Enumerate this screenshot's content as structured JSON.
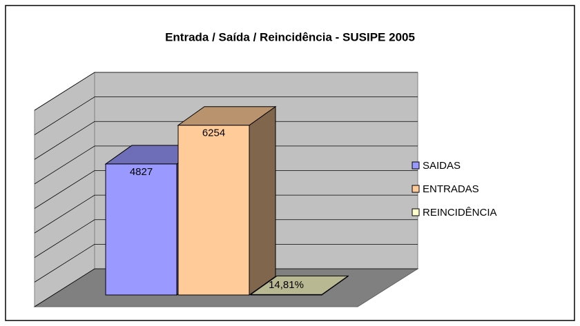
{
  "chart_data": {
    "type": "bar3d",
    "title": "Entrada / Saída / Reincidência - SUSIPE 2005",
    "categories": [
      null
    ],
    "series": [
      {
        "name": "SAIDAS",
        "color": "#9999ff",
        "values": [
          4827
        ],
        "value_labels": [
          "4827"
        ]
      },
      {
        "name": "ENTRADAS",
        "color": "#ffcc99",
        "values": [
          6254
        ],
        "value_labels": [
          "6254"
        ]
      },
      {
        "name": "REINCIDÊNCIA",
        "color": "#ffffcc",
        "values": [
          14.81
        ],
        "value_labels": [
          "14,81%"
        ]
      }
    ],
    "ylim": [
      0,
      8000
    ],
    "yticks": [
      0,
      1000,
      2000,
      3000,
      4000,
      5000,
      6000,
      7000,
      8000
    ],
    "grid": true,
    "legend": "right"
  }
}
